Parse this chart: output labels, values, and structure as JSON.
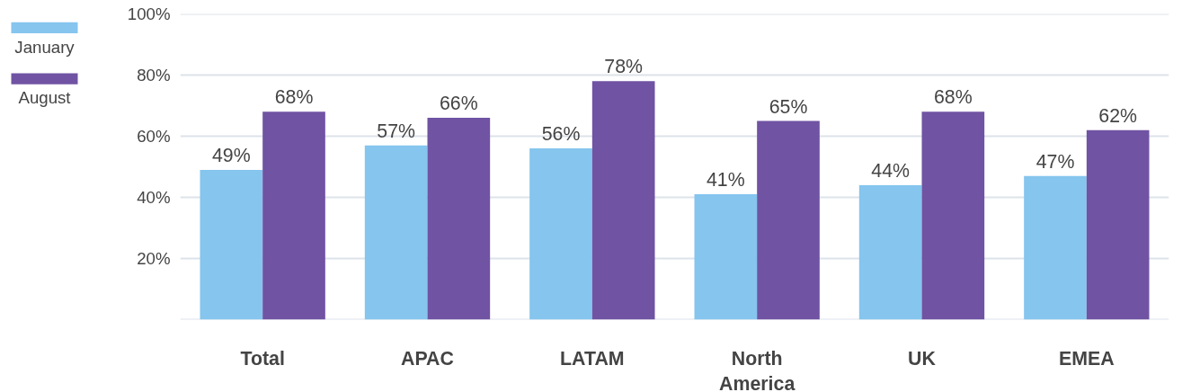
{
  "chart_data": {
    "type": "bar",
    "categories": [
      "Total",
      "APAC",
      "LATAM",
      "North America",
      "UK",
      "EMEA"
    ],
    "series": [
      {
        "name": "January",
        "color": "#85c5ee",
        "values": [
          49,
          57,
          56,
          41,
          44,
          47
        ],
        "value_labels": [
          "49%",
          "57%",
          "56%",
          "41%",
          "44%",
          "47%"
        ]
      },
      {
        "name": "August",
        "color": "#7053a3",
        "values": [
          68,
          66,
          78,
          65,
          68,
          62
        ],
        "value_labels": [
          "68%",
          "66%",
          "78%",
          "65%",
          "68%",
          "62%"
        ]
      }
    ],
    "ylim": [
      0,
      100
    ],
    "yticks": [
      {
        "value": 0,
        "label": null
      },
      {
        "value": 20,
        "label": "20%"
      },
      {
        "value": 40,
        "label": "40%"
      },
      {
        "value": 60,
        "label": "60%"
      },
      {
        "value": 80,
        "label": "80%"
      },
      {
        "value": 100,
        "label": "100%"
      }
    ],
    "grid": "y",
    "legend": "top left"
  }
}
